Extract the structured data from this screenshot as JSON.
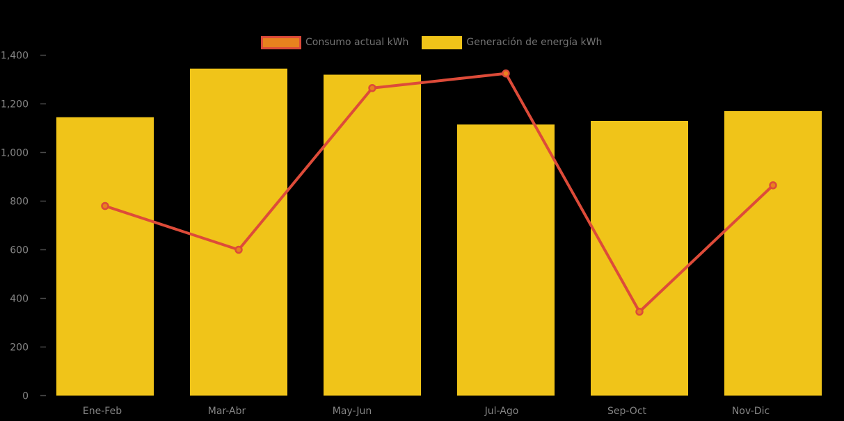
{
  "chart_data": {
    "type": "combo",
    "categories": [
      "Ene-Feb",
      "Mar-Abr",
      "May-Jun",
      "Jul-Ago",
      "Sep-Oct",
      "Nov-Dic"
    ],
    "series": [
      {
        "name": "Consumo actual kWh",
        "type": "line",
        "line_color": "#DD4B39",
        "marker_fill": "#E8821E",
        "values": [
          780,
          600,
          1265,
          1325,
          345,
          865
        ]
      },
      {
        "name": "Generación de energía kWh",
        "type": "bar",
        "bar_color": "#F0C419",
        "values": [
          1145,
          1345,
          1320,
          1115,
          1130,
          1170
        ]
      }
    ],
    "ylim": [
      0,
      1400
    ],
    "y_ticks": [
      0,
      200,
      400,
      600,
      800,
      1000,
      1200,
      1400
    ],
    "y_tick_labels": [
      "0",
      "200",
      "400",
      "600",
      "800",
      "1,000",
      "1,200",
      "1,400"
    ],
    "grid": false,
    "legend_position": "top",
    "colors": {
      "background": "#000000",
      "axis_text": "#858585",
      "legend_text": "#737373",
      "tick_mark": "#4A4A4A"
    }
  }
}
